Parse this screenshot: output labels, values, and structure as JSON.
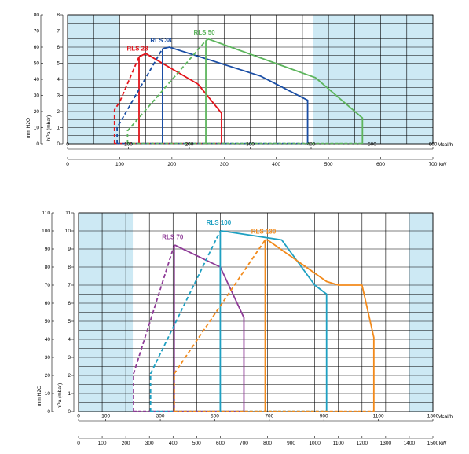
{
  "chart_data": [
    {
      "type": "line",
      "title": "",
      "ylabel_left": "mm H2O",
      "ylabel_right": "hPa (mbar)",
      "y_left": {
        "min": 0,
        "max": 80,
        "ticks": [
          "0",
          "10",
          "20",
          "30",
          "40",
          "50",
          "60",
          "70",
          "80"
        ]
      },
      "y_right": {
        "min": 0,
        "max": 8,
        "ticks": [
          "0",
          "1",
          "2",
          "3",
          "4",
          "5",
          "6",
          "7",
          "8"
        ]
      },
      "x_mcal": {
        "min": 0,
        "max": 600,
        "unit": "Mcal/h",
        "ticks": [
          "0",
          "100",
          "200",
          "300",
          "400",
          "500",
          "600"
        ]
      },
      "x_kw": {
        "min": 0,
        "max": 700,
        "unit": "kW",
        "ticks": [
          "0",
          "100",
          "200",
          "300",
          "400",
          "500",
          "600",
          "700"
        ]
      },
      "x_range_kw": [
        0,
        700
      ],
      "y_range_mbar": [
        0,
        8
      ],
      "blue_zone_kw": [
        [
          0,
          100
        ],
        [
          470,
          700
        ]
      ],
      "series": [
        {
          "name": "RLS 28",
          "color": "#e3141b",
          "dashed": [
            [
              90,
              0
            ],
            [
              90,
              2.1
            ],
            [
              100,
              2.6
            ],
            [
              137,
              5.4
            ]
          ],
          "solid": [
            [
              137,
              5.4
            ],
            [
              150,
              5.6
            ],
            [
              250,
              3.7
            ],
            [
              295,
              1.9
            ],
            [
              295,
              0
            ]
          ],
          "verticals": [
            137
          ],
          "zero_line": [
            90,
            295
          ]
        },
        {
          "name": "RLS 38",
          "color": "#1a4ea5",
          "dashed": [
            [
              95,
              0
            ],
            [
              95,
              1.0
            ],
            [
              182,
              5.9
            ]
          ],
          "solid": [
            [
              182,
              5.9
            ],
            [
              195,
              6.0
            ],
            [
              370,
              4.2
            ],
            [
              460,
              2.7
            ],
            [
              460,
              0
            ]
          ],
          "verticals": [
            182
          ],
          "zero_line": [
            95,
            460
          ]
        },
        {
          "name": "RLS 50",
          "color": "#5db55d",
          "dashed": [
            [
              115,
              0
            ],
            [
              115,
              0.8
            ],
            [
              265,
              6.4
            ]
          ],
          "solid": [
            [
              265,
              6.4
            ],
            [
              270,
              6.5
            ],
            [
              475,
              4.1
            ],
            [
              565,
              1.6
            ],
            [
              565,
              0
            ]
          ],
          "verticals": [
            265
          ],
          "zero_line": [
            115,
            565
          ]
        }
      ],
      "labels": [
        "RLS 28",
        "RLS 38",
        "RLS 50"
      ]
    },
    {
      "type": "line",
      "title": "",
      "ylabel_left": "mm H2O",
      "ylabel_right": "hPa (mbar)",
      "y_left": {
        "min": 0,
        "max": 110,
        "ticks": [
          "0",
          "10",
          "20",
          "30",
          "40",
          "50",
          "60",
          "70",
          "80",
          "90",
          "100",
          "110"
        ]
      },
      "y_right": {
        "min": 0,
        "max": 11,
        "ticks": [
          "0",
          "1",
          "2",
          "3",
          "4",
          "5",
          "6",
          "7",
          "8",
          "9",
          "10",
          "11"
        ]
      },
      "x_mcal": {
        "min": 0,
        "max": 1300,
        "unit": "Mcal/h",
        "ticks": [
          "0",
          "100",
          "300",
          "500",
          "700",
          "900",
          "1100",
          "1300"
        ]
      },
      "x_kw": {
        "min": 0,
        "max": 1500,
        "unit": "kW",
        "ticks": [
          "0",
          "100",
          "200",
          "300",
          "400",
          "500",
          "600",
          "700",
          "800",
          "900",
          "1000",
          "1100",
          "1200",
          "1300",
          "1400",
          "1500"
        ]
      },
      "x_range_kw": [
        0,
        1500
      ],
      "y_range_mbar": [
        0,
        11
      ],
      "blue_zone_kw": [
        [
          0,
          230
        ],
        [
          1400,
          1500
        ]
      ],
      "series": [
        {
          "name": "RLS 70",
          "color": "#8e3b97",
          "dashed": [
            [
              233,
              0
            ],
            [
              233,
              2.1
            ],
            [
              405,
              9.2
            ]
          ],
          "solid": [
            [
              405,
              9.2
            ],
            [
              410,
              9.2
            ],
            [
              600,
              8.0
            ],
            [
              700,
              5.2
            ],
            [
              700,
              0
            ]
          ],
          "verticals": [
            405
          ],
          "zero_line": [
            233,
            700
          ]
        },
        {
          "name": "RLS 100",
          "color": "#1ea0c2",
          "dashed": [
            [
              305,
              0
            ],
            [
              305,
              2.1
            ],
            [
              600,
              10.0
            ]
          ],
          "solid": [
            [
              600,
              10.0
            ],
            [
              605,
              10.0
            ],
            [
              860,
              9.5
            ],
            [
              1000,
              7.0
            ],
            [
              1050,
              6.5
            ],
            [
              1050,
              0
            ]
          ],
          "verticals": [
            600
          ],
          "zero_line": [
            305,
            1050
          ]
        },
        {
          "name": "RLS 130",
          "color": "#f28a1b",
          "dashed": [
            [
              405,
              0
            ],
            [
              405,
              2.1
            ],
            [
              790,
              9.5
            ]
          ],
          "solid": [
            [
              790,
              9.5
            ],
            [
              800,
              9.5
            ],
            [
              1050,
              7.2
            ],
            [
              1100,
              7.0
            ],
            [
              1200,
              7.0
            ],
            [
              1250,
              4.1
            ],
            [
              1250,
              0
            ]
          ],
          "verticals": [
            790
          ],
          "zero_line": [
            405,
            1250
          ]
        }
      ],
      "labels": [
        "RLS 70",
        "RLS 100",
        "RLS 130"
      ]
    }
  ],
  "unit_labels": {
    "mcal": "Mcal/h",
    "kw": "kW"
  }
}
